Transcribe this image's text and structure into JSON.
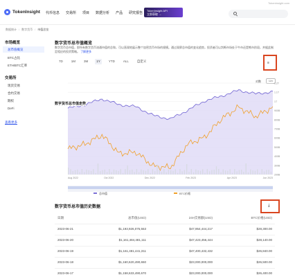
{
  "nav": {
    "logo_text": "TokenInsight",
    "items": [
      "代币信息",
      "交易所",
      "项目",
      "数据分析",
      "产品",
      "研究报告"
    ],
    "promo_line1": "TokenInsight API",
    "promo_line2": "立即获取 →",
    "top_right": "Tokeninsight.com",
    "search_placeholder": ""
  },
  "breadcrumb": {
    "items": [
      "数据统计",
      "数字货币",
      "市值总览"
    ]
  },
  "sidebar": {
    "section1_title": "市场概览",
    "section1_items": [
      "总市值概览",
      "BTC占比",
      "ETH/BTC汇率"
    ],
    "section2_title": "交易所",
    "section2_items": [
      "现货交易",
      "合约交易",
      "期权",
      "DeFi"
    ],
    "link": "查看更多"
  },
  "main": {
    "title": "数字货币总市值概览",
    "description": "数字货币总市值，即所有数字货币流通市值的总和，可以直观地展示整个加密货币市场的规模。通过观察总市值的变化趋势，投资者可以判断市场处于牛市还是熊市阶段，并据此制定相应的投资策略。",
    "description_link": "了解更多",
    "ranges": [
      "7D",
      "1M",
      "3M",
      "1Y",
      "YTD",
      "ALL",
      "自定义"
    ],
    "active_range": "1Y",
    "log_label": "对数",
    "toggle_label": "Lin",
    "chart_title": "数字货币总市值走势",
    "history_title": "数字货币总市值历史数据",
    "download_label": "下载"
  },
  "table": {
    "headers": [
      "日期",
      "总市值(USD)",
      "24H交易额(USD)",
      "BTC价格(USD)"
    ],
    "rows": [
      [
        "2023-06-21",
        "$1,193,926,075,553",
        "$47,954,444,217",
        "$28,300.00"
      ],
      [
        "2023-06-20",
        "$1,161,484,481,111",
        "$47,423,456,444",
        "$28,140.00"
      ],
      [
        "2023-06-19",
        "$1,161,481,441,311",
        "$47,400,432,432",
        "$26,840.00"
      ],
      [
        "2023-06-18",
        "$1,160,620,490,650",
        "$23,000,000,000",
        "$26,500.00"
      ],
      [
        "2023-06-17",
        "$1,158,633,490,670",
        "$23,000,000,000",
        "$26,400.00"
      ]
    ]
  },
  "chart_data": {
    "type": "area",
    "x": [
      "2022-06",
      "2022-07",
      "2022-08",
      "2022-09",
      "2022-10",
      "2022-11",
      "2022-12",
      "2023-01",
      "2023-02",
      "2023-03",
      "2023-04",
      "2023-05",
      "2023-06"
    ],
    "x_tick_labels": [
      "Aug 2022",
      "Oct 2022",
      "Dec 2022",
      "Feb 2023",
      "Apr 2023",
      "Jun 2023"
    ],
    "series": [
      {
        "name": "总市值",
        "color": "#7b6fd6",
        "values": [
          0.95,
          1.0,
          1.08,
          1.0,
          0.97,
          0.85,
          0.8,
          0.92,
          1.05,
          1.12,
          1.2,
          1.15,
          1.18
        ]
      },
      {
        "name": "BTC价格",
        "color": "#f0a02a",
        "values": [
          20500,
          21500,
          23500,
          19500,
          19800,
          16800,
          16500,
          21500,
          23000,
          27000,
          29500,
          27500,
          29500
        ]
      }
    ],
    "y_right_ticks": [
      "1.2T",
      "1.1T",
      "1T",
      "900B",
      "800B",
      "700B",
      "600B",
      "500B",
      "400B",
      "300B",
      "200B"
    ],
    "grid": true,
    "legend": "bottom"
  }
}
